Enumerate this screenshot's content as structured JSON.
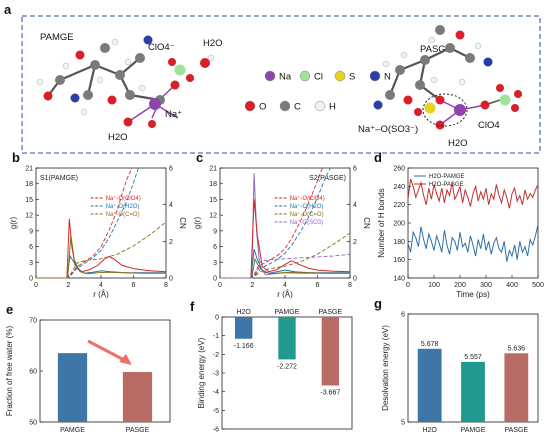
{
  "panel_a": {
    "label": "a",
    "left_title": "PAMGE",
    "right_title": "PASGE",
    "labels": {
      "clo4_left": "ClO4⁻",
      "h2o_top": "H2O",
      "na_left": "Na⁺",
      "h2o_left": "H2O",
      "na_so3": "Na⁺–O(SO3⁻)",
      "h2o_right": "H2O",
      "clo4_right": "ClO4"
    },
    "atom_legend": [
      {
        "name": "Na",
        "color": "#8e44ad"
      },
      {
        "name": "Cl",
        "color": "#9fe29a"
      },
      {
        "name": "S",
        "color": "#e5d320"
      },
      {
        "name": "N",
        "color": "#2a3ea8"
      },
      {
        "name": "O",
        "color": "#d8202a"
      },
      {
        "name": "C",
        "color": "#7a7a7a"
      },
      {
        "name": "H",
        "color": "#f2f2f2"
      }
    ]
  },
  "chart_data": [
    {
      "panel": "b",
      "type": "line",
      "title": "S1(PAMGE)",
      "xlabel": "r (Å)",
      "ylabel": "g(r)",
      "y2label": "CN",
      "xlim": [
        0,
        8
      ],
      "ylim": [
        0,
        21
      ],
      "y2lim": [
        0,
        6
      ],
      "xticks": [
        0,
        2,
        4,
        6,
        8
      ],
      "yticks": [
        0,
        3,
        6,
        9,
        12,
        15,
        18,
        21
      ],
      "y2ticks": [
        0,
        2,
        4,
        6
      ],
      "legend": [
        "Na⁺-O(ClO4)",
        "Na⁺-O(H2O)",
        "Na⁺-O(C=O)"
      ],
      "series": [
        {
          "name": "Na⁺-O(ClO4)",
          "color": "#d62728",
          "x": [
            0,
            1.9,
            2.05,
            2.2,
            2.4,
            2.8,
            3.3,
            3.8,
            4.2,
            4.5,
            4.8,
            5.3,
            6,
            7,
            8
          ],
          "y": [
            0,
            0,
            11.3,
            6,
            2.5,
            1.2,
            1.6,
            2.4,
            3.6,
            4.1,
            3.6,
            2.4,
            1.8,
            1.4,
            1.2
          ]
        },
        {
          "name": "Na⁺-O(H2O)",
          "color": "#1f77b4",
          "x": [
            0,
            1.9,
            2.1,
            2.3,
            2.6,
            3,
            3.5,
            4,
            4.6,
            5.5,
            6.5,
            8
          ],
          "y": [
            0,
            0,
            4.2,
            3.2,
            1.6,
            0.9,
            1.1,
            1.4,
            1.2,
            1,
            1,
            1
          ]
        },
        {
          "name": "Na⁺-O(C=O)",
          "color": "#8c6d1f",
          "x": [
            0,
            1.95,
            2.15,
            2.35,
            2.7,
            3.2,
            3.8,
            4.5,
            5.5,
            6.5,
            8
          ],
          "y": [
            0,
            0,
            8.2,
            3.5,
            1.2,
            0.8,
            1,
            1.1,
            1,
            0.9,
            0.9
          ]
        },
        {
          "name": "CN ClO4",
          "color": "#d62728",
          "dashed": true,
          "axis": "y2",
          "x": [
            0,
            2,
            2.5,
            3,
            3.5,
            4,
            4.5,
            5,
            5.3,
            5.6,
            5.9
          ],
          "y": [
            0,
            0,
            0.6,
            0.9,
            1.2,
            1.7,
            2.6,
            3.7,
            4.6,
            5.4,
            6
          ]
        },
        {
          "name": "CN H2O",
          "color": "#1f77b4",
          "dashed": true,
          "axis": "y2",
          "x": [
            0,
            2,
            2.5,
            3,
            3.5,
            4,
            4.5,
            5,
            5.5,
            6,
            6.3
          ],
          "y": [
            0,
            0,
            0.5,
            0.8,
            1.1,
            1.5,
            2.2,
            3.1,
            4,
            5.2,
            6
          ]
        },
        {
          "name": "CN C=O",
          "color": "#8c6d1f",
          "dashed": true,
          "axis": "y2",
          "x": [
            0,
            2,
            2.5,
            3,
            4,
            5,
            6,
            7,
            8
          ],
          "y": [
            0,
            0,
            0.8,
            0.95,
            1.05,
            1.3,
            1.75,
            2.35,
            3.05
          ]
        }
      ]
    },
    {
      "panel": "c",
      "type": "line",
      "title": "S2(PASGE)",
      "xlabel": "r (Å)",
      "ylabel": "g(r)",
      "y2label": "CN",
      "xlim": [
        0,
        8
      ],
      "ylim": [
        0,
        21
      ],
      "y2lim": [
        0,
        6
      ],
      "xticks": [
        0,
        2,
        4,
        6,
        8
      ],
      "yticks": [
        0,
        3,
        6,
        9,
        12,
        15,
        18,
        21
      ],
      "y2ticks": [
        0,
        2,
        4,
        6
      ],
      "legend": [
        "Na⁺-O(ClO4)",
        "Na⁺-O(H2O)",
        "Na⁺-O(C=O)",
        "Na⁺-O(SO3)"
      ],
      "series": [
        {
          "name": "Na⁺-O(SO3)",
          "color": "#9467bd",
          "x": [
            0,
            1.95,
            2.1,
            2.25,
            2.45,
            2.8,
            3.3,
            4,
            5,
            6,
            8
          ],
          "y": [
            0,
            0,
            20,
            9,
            2.2,
            0.6,
            0.8,
            1,
            0.9,
            0.9,
            0.9
          ]
        },
        {
          "name": "Na⁺-O(ClO4)",
          "color": "#d62728",
          "x": [
            0,
            1.9,
            2.1,
            2.3,
            2.6,
            3,
            3.5,
            4,
            4.4,
            4.8,
            5.4,
            6,
            7,
            8
          ],
          "y": [
            0,
            0,
            15,
            8,
            2.2,
            1.2,
            1.6,
            2.6,
            3.3,
            2.7,
            1.9,
            1.5,
            1.3,
            1.2
          ]
        },
        {
          "name": "Na⁺-O(H2O)",
          "color": "#1f77b4",
          "x": [
            0,
            1.9,
            2.1,
            2.3,
            2.6,
            3,
            3.5,
            4,
            4.6,
            5.5,
            6.5,
            8
          ],
          "y": [
            0,
            0,
            5.5,
            3.5,
            1.5,
            0.9,
            1.2,
            1.5,
            1.2,
            1,
            1,
            1
          ]
        },
        {
          "name": "Na⁺-O(C=O)",
          "color": "#8c6d1f",
          "x": [
            0,
            1.95,
            2.15,
            2.35,
            2.7,
            3.2,
            3.8,
            4.5,
            5.5,
            6.5,
            8
          ],
          "y": [
            0,
            0,
            3.6,
            2.4,
            1.1,
            0.8,
            1,
            1.1,
            1,
            0.9,
            0.9
          ]
        },
        {
          "name": "CN ClO4",
          "color": "#d62728",
          "dashed": true,
          "axis": "y2",
          "x": [
            0,
            2,
            2.5,
            3,
            3.5,
            4,
            4.5,
            5,
            5.5,
            6,
            6.3
          ],
          "y": [
            0,
            0,
            0.7,
            0.95,
            1.2,
            1.6,
            2.3,
            3.2,
            4.2,
            5.3,
            6
          ]
        },
        {
          "name": "CN H2O",
          "color": "#1f77b4",
          "dashed": true,
          "axis": "y2",
          "x": [
            0,
            2,
            2.5,
            3,
            3.5,
            4,
            4.5,
            5,
            5.5,
            6,
            6.5,
            6.8
          ],
          "y": [
            0,
            0,
            0.5,
            0.75,
            1,
            1.35,
            1.9,
            2.6,
            3.4,
            4.4,
            5.5,
            6
          ]
        },
        {
          "name": "CN C=O",
          "color": "#8c6d1f",
          "dashed": true,
          "axis": "y2",
          "x": [
            0,
            2,
            2.5,
            3,
            4,
            5,
            6,
            7,
            8
          ],
          "y": [
            0,
            0,
            0.35,
            0.5,
            0.65,
            0.9,
            1.3,
            1.85,
            2.45
          ]
        },
        {
          "name": "CN SO3",
          "color": "#9467bd",
          "dashed": true,
          "axis": "y2",
          "x": [
            0,
            2,
            2.5,
            3,
            4,
            5,
            6,
            7,
            8
          ],
          "y": [
            0,
            0,
            0.9,
            1,
            1.05,
            1.1,
            1.15,
            1.2,
            1.3
          ]
        }
      ]
    },
    {
      "panel": "d",
      "type": "line",
      "xlabel": "Time (ps)",
      "ylabel": "Number of H bonds",
      "xlim": [
        0,
        500
      ],
      "ylim": [
        140,
        260
      ],
      "xticks": [
        0,
        100,
        200,
        300,
        400,
        500
      ],
      "yticks": [
        140,
        160,
        180,
        200,
        220,
        240,
        260
      ],
      "series": [
        {
          "name": "H2O-PAMGE",
          "color": "#2e6fa8",
          "x": [
            0,
            10,
            20,
            30,
            40,
            50,
            60,
            70,
            80,
            90,
            100,
            110,
            120,
            130,
            140,
            150,
            160,
            170,
            180,
            190,
            200,
            210,
            220,
            230,
            240,
            250,
            260,
            270,
            280,
            290,
            300,
            310,
            320,
            330,
            340,
            350,
            360,
            370,
            380,
            390,
            400,
            410,
            420,
            430,
            440,
            450,
            460,
            470,
            480,
            490,
            500
          ],
          "y": [
            178,
            168,
            190,
            184,
            174,
            196,
            182,
            172,
            188,
            180,
            170,
            186,
            178,
            168,
            192,
            176,
            166,
            184,
            180,
            170,
            190,
            174,
            178,
            168,
            186,
            176,
            164,
            182,
            172,
            188,
            170,
            180,
            166,
            178,
            184,
            172,
            168,
            180,
            158,
            170,
            164,
            176,
            160,
            180,
            168,
            174,
            164,
            182,
            176,
            186,
            198
          ]
        },
        {
          "name": "H2O-PASGE",
          "color": "#c0302e",
          "x": [
            0,
            10,
            20,
            30,
            40,
            50,
            60,
            70,
            80,
            90,
            100,
            110,
            120,
            130,
            140,
            150,
            160,
            170,
            180,
            190,
            200,
            210,
            220,
            230,
            240,
            250,
            260,
            270,
            280,
            290,
            300,
            310,
            320,
            330,
            340,
            350,
            360,
            370,
            380,
            390,
            400,
            410,
            420,
            430,
            440,
            450,
            460,
            470,
            480,
            490,
            500
          ],
          "y": [
            226,
            248,
            240,
            228,
            236,
            244,
            230,
            220,
            238,
            226,
            242,
            232,
            224,
            238,
            222,
            236,
            230,
            244,
            226,
            232,
            240,
            222,
            236,
            228,
            218,
            232,
            240,
            224,
            234,
            226,
            238,
            220,
            232,
            226,
            242,
            230,
            222,
            236,
            228,
            216,
            232,
            238,
            224,
            230,
            220,
            236,
            226,
            232,
            228,
            236,
            242
          ]
        }
      ]
    },
    {
      "panel": "e",
      "type": "bar",
      "ylabel": "Fraction of free water (%)",
      "categories": [
        "PAMGE",
        "PASGE"
      ],
      "values": [
        63.5,
        59.8
      ],
      "colors": [
        "#3f76a8",
        "#b86b62"
      ],
      "ylim": [
        50,
        70
      ],
      "yticks": [
        50,
        60,
        70
      ]
    },
    {
      "panel": "f",
      "type": "bar",
      "ylabel": "Binding energy (eV)",
      "categories": [
        "H2O",
        "PAMGE",
        "PASGE"
      ],
      "values": [
        -1.166,
        -2.272,
        -3.667
      ],
      "value_labels": [
        "-1.166",
        "-2.272",
        "-3.667"
      ],
      "colors": [
        "#3f76a8",
        "#20998f",
        "#b86b62"
      ],
      "ylim": [
        -6,
        0
      ],
      "yticks": [
        0,
        -1,
        -2,
        -3,
        -4,
        -5,
        -6
      ]
    },
    {
      "panel": "g",
      "type": "bar",
      "ylabel": "Desolvation energy (eV)",
      "categories": [
        "H2O",
        "PAMGE",
        "PASGE"
      ],
      "values": [
        5.678,
        5.557,
        5.636
      ],
      "value_labels": [
        "5.678",
        "5.557",
        "5.636"
      ],
      "colors": [
        "#3f76a8",
        "#20998f",
        "#b86b62"
      ],
      "ylim": [
        5,
        6
      ],
      "yticks": [
        5,
        6
      ]
    }
  ]
}
